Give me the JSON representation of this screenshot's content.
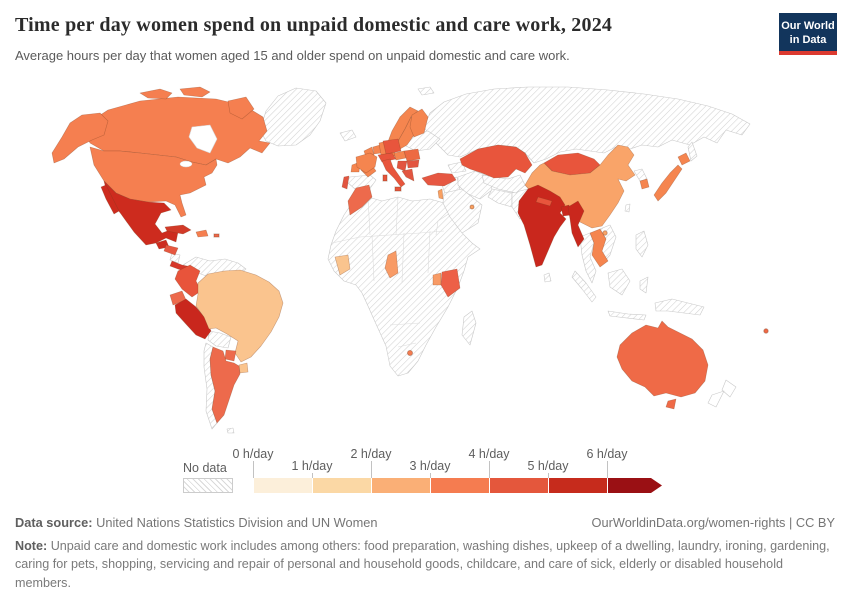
{
  "header": {
    "title": "Time per day women spend on unpaid domestic and care work, 2024",
    "subtitle": "Average hours per day that women aged 15 and older spend on unpaid domestic and care work.",
    "logo": {
      "line1": "Our World",
      "line2": "in Data",
      "bg_color": "#12355c",
      "accent_color": "#dc3a30"
    }
  },
  "legend": {
    "no_data_label": "No data",
    "ticks": [
      "0 h/day",
      "1 h/day",
      "2 h/day",
      "3 h/day",
      "4 h/day",
      "5 h/day",
      "6 h/day"
    ],
    "bin_colors": [
      "#FCEFDA",
      "#FBD8A5",
      "#FAAF76",
      "#F57C50",
      "#E4573C",
      "#C62B1C",
      "#9A1014"
    ]
  },
  "footer": {
    "source_label": "Data source:",
    "source_text": "United Nations Statistics Division and UN Women",
    "url_text": "OurWorldinData.org/women-rights",
    "separator": "|",
    "license": "CC BY",
    "note_label": "Note:",
    "note_text": "Unpaid care and domestic work includes among others: food preparation, washing dishes, upkeep of a dwelling, laundry, ironing, gardening, caring for pets, shopping, servicing and repair of personal and household goods, childcare, and care of sick, elderly or disabled household members."
  },
  "chart_data": {
    "type": "heatmap",
    "subtype": "choropleth-world-map",
    "title": "Time per day women spend on unpaid domestic and care work, 2024",
    "unit": "hours per day",
    "legend_position": "bottom",
    "bins": [
      {
        "range": "0-1 h/day",
        "color": "#FCEFDA"
      },
      {
        "range": "1-2 h/day",
        "color": "#FBD8A5"
      },
      {
        "range": "2-3 h/day",
        "color": "#FAAF76"
      },
      {
        "range": "3-4 h/day",
        "color": "#F57C50"
      },
      {
        "range": "4-5 h/day",
        "color": "#E4573C"
      },
      {
        "range": "5-6 h/day",
        "color": "#C62B1C"
      },
      {
        "range": "6+ h/day",
        "color": "#9A1014"
      },
      {
        "range": "No data",
        "color": "hatched"
      }
    ],
    "regions": [
      {
        "id": "canada",
        "name": "Canada",
        "color": "#F57F50",
        "bin": "3-4 h/day"
      },
      {
        "id": "united-states",
        "name": "United States",
        "color": "#F57F50",
        "bin": "3-4 h/day"
      },
      {
        "id": "greenland",
        "name": "Greenland",
        "color": "nodata",
        "bin": "No data"
      },
      {
        "id": "mexico",
        "name": "Mexico",
        "color": "#CD2B1E",
        "bin": "5-6 h/day"
      },
      {
        "id": "guatemala",
        "name": "Guatemala",
        "color": "#CD2B1E",
        "bin": "5-6 h/day"
      },
      {
        "id": "honduras",
        "name": "Honduras / El Salvador",
        "color": "#E65740",
        "bin": "4-5 h/day"
      },
      {
        "id": "nicaragua",
        "name": "Nicaragua",
        "color": "nodata",
        "bin": "No data"
      },
      {
        "id": "costa-rica-panama",
        "name": "Costa Rica / Panama",
        "color": "#D6372A",
        "bin": "5-6 h/day"
      },
      {
        "id": "cuba",
        "name": "Cuba",
        "color": "#D23A28",
        "bin": "5-6 h/day"
      },
      {
        "id": "dominican-republic",
        "name": "Dominican Republic",
        "color": "#F57F50",
        "bin": "3-4 h/day"
      },
      {
        "id": "puerto-rico",
        "name": "Puerto Rico",
        "color": "#ED6A4C",
        "bin": "4-5 h/day"
      },
      {
        "id": "colombia",
        "name": "Colombia",
        "color": "#E8543B",
        "bin": "4-5 h/day"
      },
      {
        "id": "ecuador",
        "name": "Ecuador",
        "color": "#ED6A4C",
        "bin": "4-5 h/day"
      },
      {
        "id": "peru",
        "name": "Peru",
        "color": "#C9271D",
        "bin": "5-6 h/day"
      },
      {
        "id": "venezuela-guyanas",
        "name": "Venezuela / Guyanas",
        "color": "nodata",
        "bin": "No data"
      },
      {
        "id": "brazil",
        "name": "Brazil",
        "color": "#FAC48E",
        "bin": "2-3 h/day"
      },
      {
        "id": "bolivia",
        "name": "Bolivia",
        "color": "nodata",
        "bin": "No data"
      },
      {
        "id": "paraguay",
        "name": "Paraguay",
        "color": "#ED6A4C",
        "bin": "4-5 h/day"
      },
      {
        "id": "uruguay",
        "name": "Uruguay",
        "color": "#FAC48E",
        "bin": "2-3 h/day"
      },
      {
        "id": "argentina",
        "name": "Argentina",
        "color": "#ED6A4C",
        "bin": "4-5 h/day"
      },
      {
        "id": "chile",
        "name": "Chile",
        "color": "nodata",
        "bin": "No data"
      },
      {
        "id": "falkland-islands",
        "name": "Falkland Islands",
        "color": "nodata",
        "bin": "No data"
      },
      {
        "id": "iceland",
        "name": "Iceland",
        "color": "nodata",
        "bin": "No data"
      },
      {
        "id": "united-kingdom",
        "name": "United Kingdom",
        "color": "#F5854F",
        "bin": "3-4 h/day"
      },
      {
        "id": "ireland",
        "name": "Ireland",
        "color": "#F5854F",
        "bin": "3-4 h/day"
      },
      {
        "id": "norway",
        "name": "Norway",
        "color": "#F5854F",
        "bin": "3-4 h/day"
      },
      {
        "id": "sweden",
        "name": "Sweden",
        "color": "#F5854F",
        "bin": "3-4 h/day"
      },
      {
        "id": "finland",
        "name": "Finland",
        "color": "#F5854F",
        "bin": "3-4 h/day"
      },
      {
        "id": "denmark",
        "name": "Denmark",
        "color": "#F5854F",
        "bin": "3-4 h/day"
      },
      {
        "id": "baltics",
        "name": "Baltic states",
        "color": "nodata",
        "bin": "No data"
      },
      {
        "id": "belarus",
        "name": "Belarus",
        "color": "nodata",
        "bin": "No data"
      },
      {
        "id": "ukraine",
        "name": "Ukraine",
        "color": "nodata",
        "bin": "No data"
      },
      {
        "id": "france",
        "name": "France",
        "color": "#F5854F",
        "bin": "3-4 h/day"
      },
      {
        "id": "benelux",
        "name": "Belgium / Netherlands",
        "color": "#F5854F",
        "bin": "3-4 h/day"
      },
      {
        "id": "germany",
        "name": "Germany",
        "color": "#F5854F",
        "bin": "3-4 h/day"
      },
      {
        "id": "poland",
        "name": "Poland",
        "color": "#E8553C",
        "bin": "4-5 h/day"
      },
      {
        "id": "spain",
        "name": "Spain",
        "color": "nodata",
        "bin": "No data"
      },
      {
        "id": "portugal",
        "name": "Portugal",
        "color": "#E25540",
        "bin": "4-5 h/day"
      },
      {
        "id": "alpine-states",
        "name": "Switzerland / Austria / Czechia",
        "color": "#E8553C",
        "bin": "4-5 h/day"
      },
      {
        "id": "italy",
        "name": "Italy",
        "color": "#E8553C",
        "bin": "4-5 h/day"
      },
      {
        "id": "hungary-slovakia",
        "name": "Hungary / Slovakia",
        "color": "#F5854F",
        "bin": "3-4 h/day"
      },
      {
        "id": "romania",
        "name": "Romania",
        "color": "#ED6A42",
        "bin": "4-5 h/day"
      },
      {
        "id": "balkans",
        "name": "Serbia / Balkans",
        "color": "#E25540",
        "bin": "4-5 h/day"
      },
      {
        "id": "bulgaria",
        "name": "Bulgaria",
        "color": "#E25540",
        "bin": "4-5 h/day"
      },
      {
        "id": "greece",
        "name": "Greece",
        "color": "#E25540",
        "bin": "4-5 h/day"
      },
      {
        "id": "turkey",
        "name": "Turkey",
        "color": "#E65742",
        "bin": "4-5 h/day"
      },
      {
        "id": "caucasus",
        "name": "Caucasus",
        "color": "nodata",
        "bin": "No data"
      },
      {
        "id": "russia",
        "name": "Russia",
        "color": "nodata",
        "bin": "No data"
      },
      {
        "id": "svalbard",
        "name": "Svalbard",
        "color": "nodata",
        "bin": "No data"
      },
      {
        "id": "sakhalin",
        "name": "Sakhalin",
        "color": "nodata",
        "bin": "No data"
      },
      {
        "id": "kazakhstan",
        "name": "Kazakhstan",
        "color": "#E8553C",
        "bin": "4-5 h/day"
      },
      {
        "id": "central-asia",
        "name": "Central Asia",
        "color": "nodata",
        "bin": "No data"
      },
      {
        "id": "mongolia",
        "name": "Mongolia",
        "color": "#E8553C",
        "bin": "4-5 h/day"
      },
      {
        "id": "china",
        "name": "China",
        "color": "#F9A469",
        "bin": "2-3 h/day"
      },
      {
        "id": "japan",
        "name": "Japan",
        "color": "#F5854F",
        "bin": "3-4 h/day"
      },
      {
        "id": "south-korea",
        "name": "South Korea",
        "color": "#F5854F",
        "bin": "3-4 h/day"
      },
      {
        "id": "north-korea",
        "name": "North Korea",
        "color": "nodata",
        "bin": "No data"
      },
      {
        "id": "taiwan",
        "name": "Taiwan",
        "color": "nodata",
        "bin": "No data"
      },
      {
        "id": "iran",
        "name": "Iran",
        "color": "nodata",
        "bin": "No data"
      },
      {
        "id": "iraq-syria",
        "name": "Iraq / Syria",
        "color": "nodata",
        "bin": "No data"
      },
      {
        "id": "arabia",
        "name": "Arabian Peninsula",
        "color": "nodata",
        "bin": "No data"
      },
      {
        "id": "israel",
        "name": "Israel",
        "color": "#F9A061",
        "bin": "2-3 h/day"
      },
      {
        "id": "qatar",
        "name": "Qatar",
        "color": "#F9A061",
        "bin": "2-3 h/day"
      },
      {
        "id": "afghanistan",
        "name": "Afghanistan",
        "color": "nodata",
        "bin": "No data"
      },
      {
        "id": "pakistan",
        "name": "Pakistan",
        "color": "nodata",
        "bin": "No data"
      },
      {
        "id": "india",
        "name": "India",
        "color": "#C9271D",
        "bin": "5-6 h/day"
      },
      {
        "id": "nepal",
        "name": "Nepal",
        "color": "#E8553C",
        "bin": "4-5 h/day"
      },
      {
        "id": "sri-lanka",
        "name": "Sri Lanka",
        "color": "nodata",
        "bin": "No data"
      },
      {
        "id": "bangladesh",
        "name": "Bangladesh",
        "color": "#C9271D",
        "bin": "5-6 h/day"
      },
      {
        "id": "myanmar",
        "name": "Myanmar",
        "color": "#C9271D",
        "bin": "5-6 h/day"
      },
      {
        "id": "thailand",
        "name": "Thailand / Malaysia",
        "color": "nodata",
        "bin": "No data"
      },
      {
        "id": "laos-cambodia",
        "name": "Laos / Cambodia",
        "color": "#F5854F",
        "bin": "3-4 h/day"
      },
      {
        "id": "vietnam",
        "name": "Vietnam",
        "color": "nodata",
        "bin": "No data"
      },
      {
        "id": "philippines",
        "name": "Philippines",
        "color": "nodata",
        "bin": "No data"
      },
      {
        "id": "indonesia",
        "name": "Indonesia",
        "color": "nodata",
        "bin": "No data"
      },
      {
        "id": "new-guinea",
        "name": "Papua New Guinea",
        "color": "nodata",
        "bin": "No data"
      },
      {
        "id": "australia",
        "name": "Australia",
        "color": "#EF6A47",
        "bin": "3-4 h/day"
      },
      {
        "id": "new-zealand",
        "name": "New Zealand",
        "color": "#FFFFFF",
        "bin": "No data"
      },
      {
        "id": "fiji",
        "name": "Fiji",
        "color": "#EF6A47",
        "bin": "3-4 h/day"
      },
      {
        "id": "morocco",
        "name": "Morocco",
        "color": "#ED6A4C",
        "bin": "4-5 h/day"
      },
      {
        "id": "africa-mainland",
        "name": "Africa (no data)",
        "color": "nodata",
        "bin": "No data"
      },
      {
        "id": "cote-divoire",
        "name": "Côte d'Ivoire",
        "color": "#FAC48E",
        "bin": "2-3 h/day"
      },
      {
        "id": "cameroon",
        "name": "Cameroon",
        "color": "#F89B66",
        "bin": "2-3 h/day"
      },
      {
        "id": "uganda",
        "name": "Uganda",
        "color": "#F89B66",
        "bin": "2-3 h/day"
      },
      {
        "id": "kenya",
        "name": "Kenya",
        "color": "#ED6047",
        "bin": "4-5 h/day"
      },
      {
        "id": "lesotho",
        "name": "Lesotho",
        "color": "#F57C50",
        "bin": "3-4 h/day"
      },
      {
        "id": "madagascar",
        "name": "Madagascar",
        "color": "nodata",
        "bin": "No data"
      }
    ]
  }
}
